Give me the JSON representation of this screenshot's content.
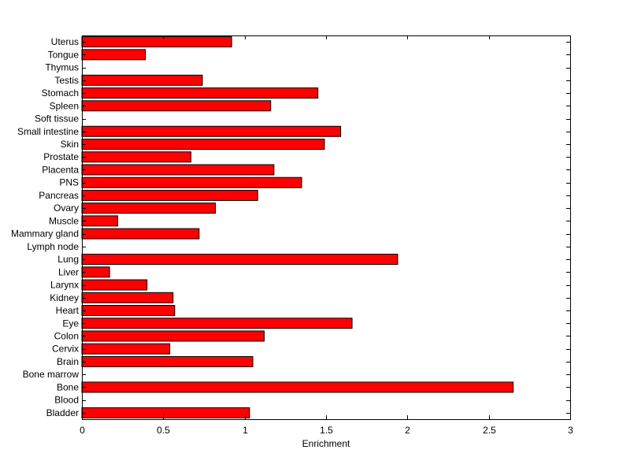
{
  "chart_data": {
    "type": "bar",
    "orientation": "horizontal",
    "title": "",
    "xlabel": "Enrichment",
    "ylabel": "",
    "xlim": [
      0,
      3
    ],
    "xticks": [
      "0",
      "0.5",
      "1",
      "1.5",
      "2",
      "2.5",
      "3"
    ],
    "grid": false,
    "bar_color": "#ff0000",
    "categories": [
      "Bladder",
      "Blood",
      "Bone",
      "Bone marrow",
      "Brain",
      "Cervix",
      "Colon",
      "Eye",
      "Heart",
      "Kidney",
      "Larynx",
      "Liver",
      "Lung",
      "Lymph node",
      "Mammary gland",
      "Muscle",
      "Ovary",
      "Pancreas",
      "PNS",
      "Placenta",
      "Prostate",
      "Skin",
      "Small intestine",
      "Soft tissue",
      "Spleen",
      "Stomach",
      "Testis",
      "Thymus",
      "Tongue",
      "Uterus"
    ],
    "values": [
      1.03,
      0,
      2.65,
      0,
      1.05,
      0.54,
      1.12,
      1.66,
      0.57,
      0.56,
      0.4,
      0.17,
      1.94,
      0,
      0.72,
      0.22,
      0.82,
      1.08,
      1.35,
      1.18,
      0.67,
      1.49,
      1.59,
      0,
      1.16,
      1.45,
      0.74,
      0,
      0.39,
      0.92
    ]
  }
}
